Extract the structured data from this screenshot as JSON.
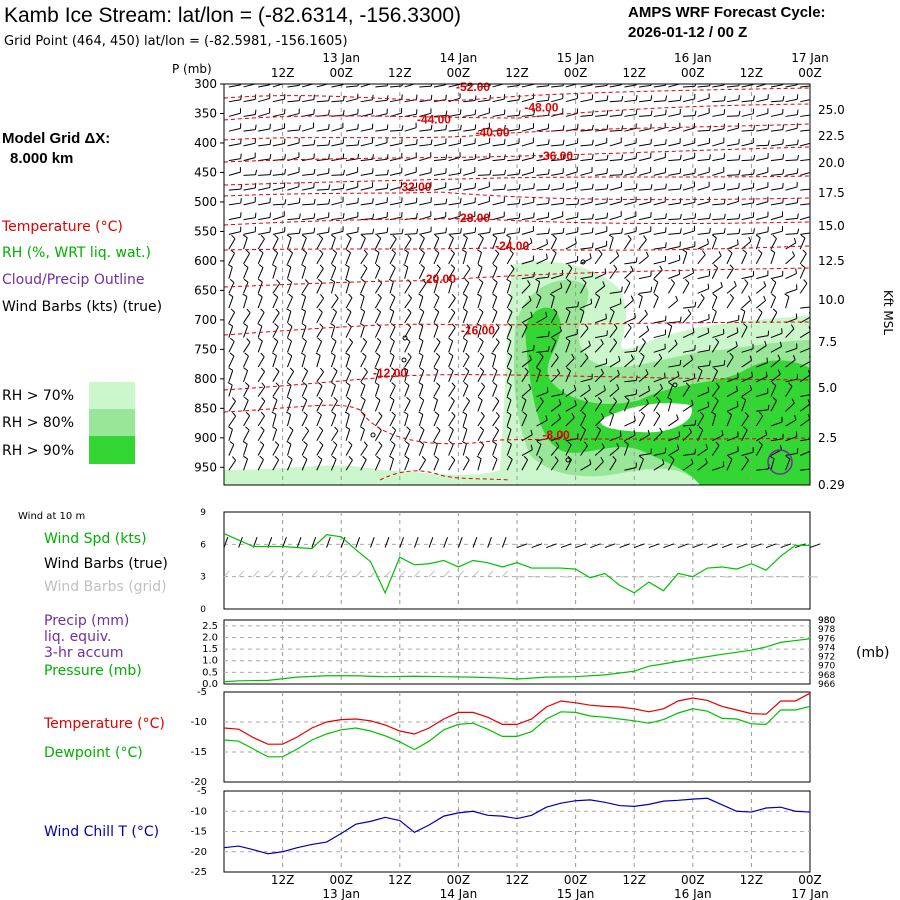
{
  "header": {
    "title": "Kamb Ice Stream:  lat/lon = (-82.6314, -156.3300)",
    "subtitle": "Grid Point (464, 450) lat/lon = (-82.5981, -156.1605)",
    "cycle_label": "AMPS WRF Forecast Cycle:",
    "cycle_value": "2026-01-12 / 00  Z"
  },
  "sidebar": {
    "model_grid_label": "Model Grid ΔX:",
    "model_grid_value": "8.000 km",
    "legend": {
      "temperature": "Temperature (°C)",
      "rh": "RH (%, WRT liq. wat.)",
      "cloud": "Cloud/Precip Outline",
      "wind": "Wind Barbs (kts) (true)"
    },
    "rh_classes": [
      {
        "label": "RH > 70%",
        "color": "#ccf7cc"
      },
      {
        "label": "RH > 80%",
        "color": "#99e699"
      },
      {
        "label": "RH > 90%",
        "color": "#33d633"
      }
    ]
  },
  "colors": {
    "temperature": "#e00000",
    "dewpoint": "#00c000",
    "wind_chill": "#0000b0",
    "precip_label": "#7030a0",
    "grid_barb": "#c0c0c0"
  },
  "chart_data": [
    {
      "type": "contour",
      "title": "Time-height cross section",
      "ylabel": "P (mb)",
      "y2label": "Kft MSL",
      "x_time_labels": [
        {
          "h": 12,
          "hour": "12Z",
          "date": ""
        },
        {
          "h": 24,
          "hour": "00Z",
          "date": "13 Jan"
        },
        {
          "h": 36,
          "hour": "12Z",
          "date": ""
        },
        {
          "h": 48,
          "hour": "00Z",
          "date": "14 Jan"
        },
        {
          "h": 60,
          "hour": "12Z",
          "date": ""
        },
        {
          "h": 72,
          "hour": "00Z",
          "date": "15 Jan"
        },
        {
          "h": 84,
          "hour": "12Z",
          "date": ""
        },
        {
          "h": 96,
          "hour": "00Z",
          "date": "16 Jan"
        },
        {
          "h": 108,
          "hour": "12Z",
          "date": ""
        },
        {
          "h": 120,
          "hour": "00Z",
          "date": "17 Jan"
        }
      ],
      "pressure_ticks": [
        300,
        350,
        400,
        450,
        500,
        550,
        600,
        650,
        700,
        750,
        800,
        850,
        900,
        950
      ],
      "height_ticks_kft": [
        "25.0",
        "22.5",
        "20.0",
        "17.5",
        "15.0",
        "12.5",
        "10.0",
        "7.5",
        "5.0",
        "2.5",
        "0.29"
      ],
      "xlim_hours": [
        0,
        120
      ],
      "ylim_mb": [
        300,
        980
      ],
      "temperature_isotherms": [
        {
          "label": "-52.00",
          "h": 51,
          "p": 305
        },
        {
          "label": "-48.00",
          "h": 65,
          "p": 340
        },
        {
          "label": "-44.00",
          "h": 43,
          "p": 360
        },
        {
          "label": "-40.00",
          "h": 55,
          "p": 382
        },
        {
          "label": "-36.00",
          "h": 68,
          "p": 422
        },
        {
          "label": "-32.00",
          "h": 39,
          "p": 475
        },
        {
          "label": "-28.00",
          "h": 51,
          "p": 527
        },
        {
          "label": "-24.00",
          "h": 59,
          "p": 575
        },
        {
          "label": "-20.00",
          "h": 44,
          "p": 631
        },
        {
          "label": "-16.00",
          "h": 52,
          "p": 718
        },
        {
          "label": "-12.00",
          "h": 34,
          "p": 790
        },
        {
          "label": "-8.00",
          "h": 68,
          "p": 895
        }
      ]
    },
    {
      "type": "line",
      "title": "Wind at 10 m",
      "legend": [
        "Wind Spd (kts)",
        "Wind Barbs (true)",
        "Wind Barbs (grid)"
      ],
      "x_hours": [
        0,
        6,
        12,
        18,
        21,
        24,
        27,
        30,
        33,
        36,
        39,
        42,
        45,
        48,
        51,
        54,
        57,
        60,
        63,
        66,
        69,
        72,
        75,
        78,
        81,
        84,
        87,
        90,
        93,
        96,
        99,
        102,
        105,
        108,
        111,
        114,
        117,
        120
      ],
      "values": [
        7,
        5.8,
        5.8,
        5.6,
        6.9,
        6.7,
        5.5,
        4.4,
        1.5,
        4.8,
        4.1,
        4.2,
        4.5,
        3.9,
        4.5,
        4.3,
        3.9,
        4.3,
        3.8,
        3.8,
        3.8,
        3.7,
        2.9,
        3.3,
        2.2,
        1.5,
        2.5,
        1.7,
        3.3,
        3,
        3.8,
        3.9,
        3.7,
        4.2,
        3.6,
        4.9,
        5.9,
        5.9
      ],
      "ylim": [
        0,
        9
      ],
      "yticks": [
        "0",
        "3",
        "6",
        "9"
      ]
    },
    {
      "type": "line",
      "legend": [
        "Precip (mm)",
        "liq. equiv.",
        "3-hr accum",
        "Pressure (mb)"
      ],
      "ylabel_right": "(mb)",
      "precip_ticks": [
        "0.0",
        "0.5",
        "1.0",
        "1.5",
        "2.0",
        "2.5"
      ],
      "pressure_ticks": [
        "966",
        "968",
        "970",
        "972",
        "974",
        "976",
        "978",
        "980"
      ],
      "precip_values": [],
      "pressure": {
        "x_hours": [
          0,
          3,
          9,
          15,
          21,
          27,
          33,
          39,
          45,
          51,
          57,
          60,
          66,
          72,
          78,
          84,
          87,
          90,
          96,
          102,
          108,
          111,
          114,
          117,
          120
        ],
        "values": [
          966.5,
          966.7,
          966.8,
          967.5,
          967.8,
          967.8,
          967.6,
          967.7,
          967.6,
          967.5,
          967.3,
          967.1,
          967.5,
          967.6,
          968.0,
          968.8,
          969.9,
          970.4,
          971.5,
          972.5,
          973.4,
          974.1,
          975.1,
          975.5,
          975.9
        ],
        "ylim": [
          966,
          980
        ]
      }
    },
    {
      "type": "line",
      "ylim": [
        -20,
        -5
      ],
      "yticks": [
        "-5",
        "-10",
        "-15",
        "-20"
      ],
      "x_hours": [
        0,
        3,
        6,
        9,
        12,
        15,
        18,
        21,
        24,
        27,
        30,
        33,
        36,
        39,
        42,
        45,
        48,
        51,
        54,
        57,
        60,
        63,
        66,
        69,
        72,
        75,
        78,
        81,
        84,
        87,
        90,
        93,
        96,
        99,
        102,
        105,
        108,
        111,
        114,
        117,
        120
      ],
      "series": [
        {
          "name": "Temperature (°C)",
          "values": [
            -11.0,
            -11.2,
            -12.6,
            -13.7,
            -13.7,
            -12.5,
            -11.0,
            -10.0,
            -9.6,
            -9.5,
            -9.8,
            -10.5,
            -11.5,
            -12.0,
            -11.0,
            -9.5,
            -8.4,
            -8.4,
            -9.2,
            -10.4,
            -10.4,
            -9.5,
            -7.5,
            -6.5,
            -6.8,
            -7.2,
            -7.4,
            -7.5,
            -7.8,
            -8.3,
            -7.8,
            -6.5,
            -6.0,
            -6.4,
            -7.4,
            -8.0,
            -8.6,
            -8.7,
            -6.5,
            -6.5,
            -5.2
          ]
        },
        {
          "name": "Dewpoint (°C)",
          "values": [
            -13.0,
            -13.2,
            -14.5,
            -15.8,
            -15.8,
            -14.5,
            -13.0,
            -12.0,
            -11.3,
            -11.0,
            -11.5,
            -12.3,
            -13.3,
            -14.6,
            -13.2,
            -11.3,
            -10.4,
            -10.2,
            -11.2,
            -12.4,
            -12.4,
            -11.6,
            -9.5,
            -8.3,
            -8.4,
            -9.0,
            -9.2,
            -9.5,
            -9.8,
            -10.2,
            -9.6,
            -8.5,
            -7.8,
            -8.2,
            -9.4,
            -9.5,
            -10.3,
            -10.4,
            -8.0,
            -8.0,
            -7.4
          ]
        }
      ]
    },
    {
      "type": "line",
      "ylim": [
        -25,
        -5
      ],
      "yticks": [
        "-5",
        "-10",
        "-15",
        "-20",
        "-25"
      ],
      "x_hours": [
        0,
        3,
        6,
        9,
        12,
        15,
        18,
        21,
        24,
        27,
        30,
        33,
        36,
        39,
        42,
        45,
        48,
        51,
        54,
        57,
        60,
        63,
        66,
        69,
        72,
        75,
        78,
        81,
        84,
        87,
        90,
        93,
        96,
        99,
        102,
        105,
        108,
        111,
        114,
        117,
        120
      ],
      "series": [
        {
          "name": "Wind Chill T (°C)",
          "values": [
            -19.0,
            -18.6,
            -19.5,
            -20.5,
            -20.0,
            -19.0,
            -18.2,
            -17.6,
            -15.5,
            -13.2,
            -12.5,
            -11.5,
            -12.3,
            -15.2,
            -13.4,
            -11.2,
            -10.4,
            -10.0,
            -11.0,
            -11.2,
            -11.8,
            -11.0,
            -9.0,
            -8.0,
            -7.4,
            -7.2,
            -7.8,
            -8.6,
            -8.8,
            -8.3,
            -7.5,
            -7.3,
            -7.0,
            -6.8,
            -8.4,
            -10.0,
            -10.2,
            -9.2,
            -9.0,
            -10.0,
            -10.2
          ]
        }
      ]
    }
  ]
}
